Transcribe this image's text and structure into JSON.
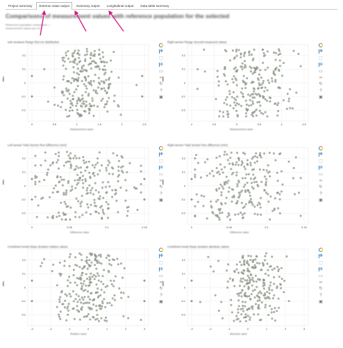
{
  "tabs": [
    "Project summary",
    "Extreme value output",
    "Summary output",
    "Longitudinal output",
    "Data table summary"
  ],
  "active_tab": 1,
  "page": {
    "title": "Comparisons of measurement values with reference population for the selected",
    "subtitle": "Reference population comparison — measurement values per run"
  },
  "colors": {
    "point": "#9aa394",
    "point_edge": "#6f7a6a",
    "arrow": "#d6168a",
    "grid": "#ececec"
  },
  "toolbar_icons": [
    "bokeh-logo-icon",
    "pan-icon",
    "box-zoom-icon",
    "wheel-zoom-icon",
    "box-select-icon",
    "lasso-icon",
    "reset-icon",
    "help-icon",
    "save-icon"
  ],
  "plots": [
    {
      "title": "sub measure Range first run distribution",
      "xlabel": "Measurement value",
      "ylabel": "Jitter",
      "x_ticks": [
        "0",
        "0.5",
        "1",
        "1.5",
        "2",
        "2.5"
      ],
      "y_ticks": [
        "0.2",
        "0.1",
        "0",
        "-0.1",
        "-0.2"
      ],
      "x_range": [
        0,
        2.5
      ],
      "outliers": [
        0.0,
        2.45
      ]
    },
    {
      "title": "Right sensor Range Second measured values",
      "xlabel": "Measurement value",
      "ylabel": "Jitter",
      "x_ticks": [
        "2",
        "2.5",
        "3",
        "3.5",
        "4",
        "4.5"
      ],
      "y_ticks": [
        "0.2",
        "0.1",
        "0",
        "-0.1",
        "-0.2"
      ],
      "x_range": [
        2,
        4.5
      ],
      "outliers": []
    },
    {
      "title": "Left sensor Total Sensor Run Difference (mm)",
      "xlabel": "Difference value",
      "ylabel": "Jitter",
      "x_ticks": [
        "0",
        "0.05",
        "0.1",
        "0.15"
      ],
      "y_ticks": [
        "0.2",
        "0.1",
        "0",
        "-0.1",
        "-0.2"
      ],
      "x_range": [
        0,
        0.15
      ],
      "outliers": [
        0.0,
        0.15
      ]
    },
    {
      "title": "Right sensor Total Sensor Run difference (mm)",
      "xlabel": "Difference value",
      "ylabel": "Jitter",
      "x_ticks": [
        "0",
        "0.05",
        "0.1",
        "0.15"
      ],
      "y_ticks": [
        "0.2",
        "0.1",
        "0",
        "-0.1",
        "-0.2"
      ],
      "x_range": [
        0,
        0.15
      ],
      "outliers": [
        0.0
      ]
    },
    {
      "title": "Combined result Slope duration relative values",
      "xlabel": "Relative value",
      "ylabel": "Jitter",
      "x_ticks": [
        "-3",
        "-2",
        "-1",
        "0",
        "1",
        "2",
        "3"
      ],
      "y_ticks": [
        "0.2",
        "0.1",
        "0",
        "-0.1",
        "-0.2"
      ],
      "x_range": [
        -3,
        3
      ],
      "outliers": [
        -3.0,
        3.0
      ]
    },
    {
      "title": "Combined result Slope duration absolute values",
      "xlabel": "Absolute value",
      "ylabel": "Jitter",
      "x_ticks": [
        "-3",
        "-2",
        "-1",
        "0",
        "1",
        "2",
        "3"
      ],
      "y_ticks": [
        "0.2",
        "0.1",
        "0",
        "-0.1",
        "-0.2"
      ],
      "x_range": [
        -3,
        3
      ],
      "outliers": [
        -3.0
      ]
    }
  ],
  "chart_data": [
    {
      "type": "scatter",
      "title": "sub measure Range first run distribution",
      "xlabel": "Measurement value",
      "ylabel": "Jitter",
      "xlim": [
        0,
        2.5
      ],
      "ylim": [
        -0.25,
        0.25
      ],
      "series": [
        {
          "center": 1.2,
          "spread": 0.35,
          "count": 240
        }
      ]
    },
    {
      "type": "scatter",
      "title": "Right sensor Range Second measured values",
      "xlabel": "Measurement value",
      "ylabel": "Jitter",
      "xlim": [
        2,
        4.5
      ],
      "ylim": [
        -0.25,
        0.25
      ],
      "series": [
        {
          "center": 3.3,
          "spread": 0.38,
          "count": 240
        }
      ]
    },
    {
      "type": "scatter",
      "title": "Left sensor Total Sensor Run Difference (mm)",
      "xlabel": "Difference value",
      "ylabel": "Jitter",
      "xlim": [
        0,
        0.15
      ],
      "ylim": [
        -0.25,
        0.25
      ],
      "series": [
        {
          "center": 0.07,
          "spread": 0.035,
          "count": 240
        }
      ]
    },
    {
      "type": "scatter",
      "title": "Right sensor Total Sensor Run difference (mm)",
      "xlabel": "Difference value",
      "ylabel": "Jitter",
      "xlim": [
        0,
        0.15
      ],
      "ylim": [
        -0.25,
        0.25
      ],
      "series": [
        {
          "center": 0.065,
          "spread": 0.033,
          "count": 240
        }
      ]
    },
    {
      "type": "scatter",
      "title": "Combined result Slope duration relative values",
      "xlabel": "Relative value",
      "ylabel": "Jitter",
      "xlim": [
        -3,
        3
      ],
      "ylim": [
        -0.25,
        0.25
      ],
      "series": [
        {
          "center": 0.0,
          "spread": 0.9,
          "count": 240
        }
      ]
    },
    {
      "type": "scatter",
      "title": "Combined result Slope duration absolute values",
      "xlabel": "Absolute value",
      "ylabel": "Jitter",
      "xlim": [
        -3,
        3
      ],
      "ylim": [
        -0.25,
        0.25
      ],
      "series": [
        {
          "center": 0.2,
          "spread": 0.85,
          "count": 240
        }
      ]
    }
  ]
}
